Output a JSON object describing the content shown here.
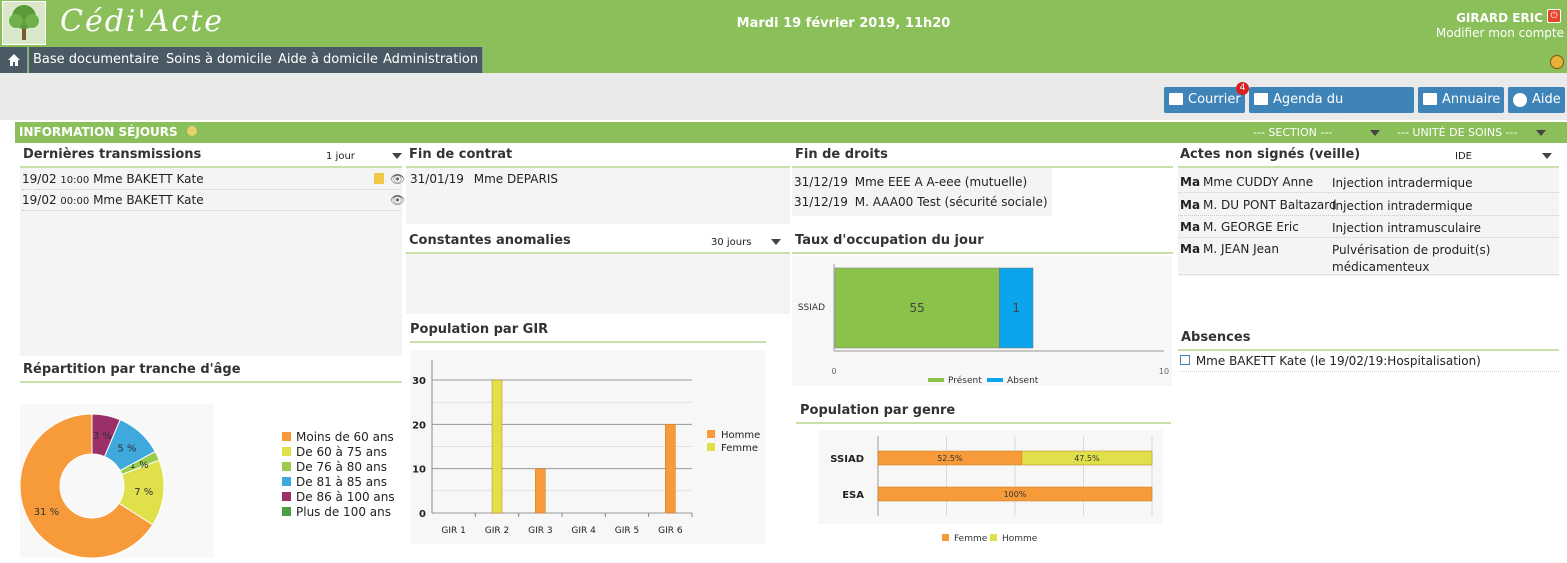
{
  "header": {
    "app_title": "Cédi'Acte",
    "datetime": "Mardi 19 février 2019, 11h20",
    "user_name": "GIRARD ERIC",
    "modify_account": "Modifier mon compte"
  },
  "nav": {
    "items": [
      "Base documentaire",
      "Soins à domicile",
      "Aide à domicile",
      "Administration"
    ]
  },
  "toolbar": {
    "mail_label": "Courrier",
    "mail_count": "4",
    "agenda_label": "Agenda du personnel",
    "directory_label": "Annuaire",
    "help_label": "Aide"
  },
  "section": {
    "title": "INFORMATION SÉJOURS",
    "section_select": "--- SECTION ---",
    "unit_select": "--- UNITÉ DE SOINS ---"
  },
  "transmissions": {
    "title": "Dernières transmissions",
    "period": "1 jour",
    "rows": [
      {
        "date": "19/02",
        "time": "10:00",
        "name": "Mme BAKETT Kate"
      },
      {
        "date": "19/02",
        "time": "00:00",
        "name": "Mme BAKETT Kate"
      }
    ]
  },
  "contract": {
    "title": "Fin de contrat",
    "rows": [
      {
        "date": "31/01/19",
        "name": "Mme DEPARIS"
      }
    ]
  },
  "rights": {
    "title": "Fin de droits",
    "rows": [
      {
        "date": "31/12/19",
        "name": "Mme EEE A A-eee (mutuelle)"
      },
      {
        "date": "31/12/19",
        "name": "M. AAA00 Test (sécurité sociale)"
      }
    ]
  },
  "unsigned_acts": {
    "title": "Actes non signés (veille)",
    "role": "IDE",
    "rows": [
      {
        "day": "Ma",
        "patient": "Mme CUDDY Anne",
        "act": "Injection intradermique"
      },
      {
        "day": "Ma",
        "patient": "M. DU PONT Baltazard",
        "act": "Injection intradermique"
      },
      {
        "day": "Ma",
        "patient": "M. GEORGE Eric",
        "act": "Injection intramusculaire"
      },
      {
        "day": "Ma",
        "patient": "M. JEAN Jean",
        "act": "Pulvérisation de produit(s) médicamenteux"
      }
    ]
  },
  "anomalies": {
    "title": "Constantes anomalies",
    "period": "30 jours"
  },
  "occupancy": {
    "title": "Taux d'occupation du jour"
  },
  "absences": {
    "title": "Absences",
    "rows": [
      "Mme BAKETT Kate (le 19/02/19:Hospitalisation)"
    ]
  },
  "age_title": "Répartition par tranche d'âge",
  "gir_title": "Population par GIR",
  "gender_title": "Population par genre",
  "colors": {
    "green": "#8bbf5a",
    "orange": "#f79a3a",
    "yellow": "#dfe04a",
    "lightgreen": "#9bcc50",
    "blue": "#3fa8dc",
    "purple": "#9b2f68",
    "darkgreen": "#4aa040",
    "occ_green": "#8bc34a",
    "occ_blue": "#0aa5ea"
  },
  "chart_data": [
    {
      "type": "pie",
      "title": "Répartition par tranche d'âge",
      "categories": [
        "Moins de 60 ans",
        "De 60 à 75 ans",
        "De 76 à 80 ans",
        "De 81 à 85 ans",
        "De 86 à 100 ans",
        "Plus de 100 ans"
      ],
      "values": [
        31,
        7,
        1,
        5,
        3,
        0
      ],
      "value_labels": [
        "31 %",
        "7 %",
        "1 %",
        "5 %",
        "3 %",
        ""
      ],
      "legend": "right"
    },
    {
      "type": "bar",
      "title": "Population par GIR",
      "categories": [
        "GIR 1",
        "GIR 2",
        "GIR 3",
        "GIR 4",
        "GIR 5",
        "GIR 6"
      ],
      "series": [
        {
          "name": "Homme",
          "values": [
            0,
            0,
            10,
            0,
            0,
            20
          ]
        },
        {
          "name": "Femme",
          "values": [
            0,
            30,
            0,
            0,
            0,
            0
          ]
        }
      ],
      "yticks": [
        "0",
        "10",
        "20",
        "30"
      ],
      "ylim": [
        0,
        30
      ],
      "legend": "right"
    },
    {
      "type": "bar",
      "title": "Taux d'occupation du jour",
      "orientation": "horizontal",
      "stacked": true,
      "categories": [
        "SSIAD"
      ],
      "series": [
        {
          "name": "Présent",
          "values": [
            55
          ],
          "labels": [
            "55"
          ]
        },
        {
          "name": "Absent",
          "values": [
            1
          ],
          "labels": [
            "1"
          ]
        }
      ],
      "xticks": [
        "0",
        "10"
      ],
      "legend": "bottom"
    },
    {
      "type": "bar",
      "title": "Population par genre",
      "orientation": "horizontal",
      "stacked": true,
      "categories": [
        "SSIAD",
        "ESA"
      ],
      "series": [
        {
          "name": "Femme",
          "values": [
            52.5,
            100
          ],
          "labels": [
            "52.5%",
            "100%"
          ]
        },
        {
          "name": "Homme",
          "values": [
            47.5,
            0
          ],
          "labels": [
            "47.5%",
            ""
          ]
        }
      ],
      "legend": "bottom"
    }
  ]
}
